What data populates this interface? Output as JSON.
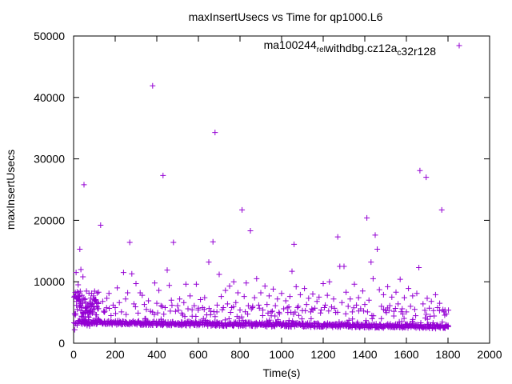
{
  "chart_data": {
    "type": "scatter",
    "title": "maxInsertUsecs vs Time for qp1000.L6",
    "xlabel": "Time(s)",
    "ylabel": "maxInsertUsecs",
    "xlim": [
      0,
      2000
    ],
    "ylim": [
      0,
      50000
    ],
    "xticks": [
      "0",
      "200",
      "400",
      "600",
      "800",
      "1000",
      "1200",
      "1400",
      "1600",
      "1800",
      "2000"
    ],
    "yticks": [
      "0",
      "10000",
      "20000",
      "30000",
      "40000",
      "50000"
    ],
    "grid": false,
    "legend_position": "top-right",
    "marker": "plus",
    "series": [
      {
        "name": "ma100244_rel_withdbg.cz12a_c32r128",
        "legend_parts": [
          {
            "text": "ma100244",
            "sub": false
          },
          {
            "text": "rel",
            "sub": true
          },
          {
            "text": "w",
            "sub": false
          },
          {
            "text": "ithdbg.cz12a",
            "sub": false
          },
          {
            "text": "c",
            "sub": true
          },
          {
            "text": "32r128",
            "sub": false
          }
        ],
        "color": "#9400d3",
        "highlight_points": [
          [
            5,
            2200
          ],
          [
            8,
            3200
          ],
          [
            10,
            4800
          ],
          [
            12,
            11500
          ],
          [
            15,
            6800
          ],
          [
            18,
            5500
          ],
          [
            20,
            7500
          ],
          [
            22,
            9500
          ],
          [
            25,
            8200
          ],
          [
            28,
            7000
          ],
          [
            30,
            15300
          ],
          [
            32,
            6200
          ],
          [
            35,
            12000
          ],
          [
            38,
            5800
          ],
          [
            40,
            7800
          ],
          [
            45,
            10800
          ],
          [
            50,
            25800
          ],
          [
            55,
            7200
          ],
          [
            60,
            6500
          ],
          [
            65,
            5300
          ],
          [
            70,
            6000
          ],
          [
            80,
            4700
          ],
          [
            90,
            4900
          ],
          [
            100,
            5600
          ],
          [
            110,
            4600
          ],
          [
            120,
            8300
          ],
          [
            130,
            19200
          ],
          [
            140,
            6800
          ],
          [
            150,
            5200
          ],
          [
            160,
            7300
          ],
          [
            170,
            8100
          ],
          [
            180,
            4500
          ],
          [
            190,
            6200
          ],
          [
            200,
            5800
          ],
          [
            210,
            9000
          ],
          [
            220,
            6600
          ],
          [
            230,
            5100
          ],
          [
            240,
            11500
          ],
          [
            250,
            7200
          ],
          [
            260,
            8200
          ],
          [
            270,
            16400
          ],
          [
            280,
            11300
          ],
          [
            290,
            6400
          ],
          [
            300,
            9700
          ],
          [
            310,
            4900
          ],
          [
            320,
            8200
          ],
          [
            330,
            7800
          ],
          [
            340,
            6300
          ],
          [
            350,
            5500
          ],
          [
            360,
            6900
          ],
          [
            370,
            5200
          ],
          [
            380,
            41900
          ],
          [
            390,
            9800
          ],
          [
            400,
            6500
          ],
          [
            410,
            8600
          ],
          [
            420,
            6100
          ],
          [
            430,
            27300
          ],
          [
            440,
            5800
          ],
          [
            450,
            11900
          ],
          [
            460,
            9400
          ],
          [
            470,
            7000
          ],
          [
            480,
            16400
          ],
          [
            490,
            5200
          ],
          [
            500,
            6100
          ],
          [
            510,
            7200
          ],
          [
            520,
            4900
          ],
          [
            530,
            6600
          ],
          [
            540,
            9600
          ],
          [
            550,
            5600
          ],
          [
            560,
            7700
          ],
          [
            570,
            4400
          ],
          [
            580,
            6100
          ],
          [
            590,
            9600
          ],
          [
            600,
            5700
          ],
          [
            610,
            7100
          ],
          [
            620,
            5800
          ],
          [
            630,
            7400
          ],
          [
            640,
            4600
          ],
          [
            650,
            13200
          ],
          [
            660,
            5200
          ],
          [
            670,
            16500
          ],
          [
            680,
            34300
          ],
          [
            690,
            6200
          ],
          [
            700,
            11200
          ],
          [
            710,
            7600
          ],
          [
            720,
            5800
          ],
          [
            730,
            8600
          ],
          [
            740,
            6400
          ],
          [
            750,
            9300
          ],
          [
            760,
            5800
          ],
          [
            770,
            10000
          ],
          [
            780,
            6600
          ],
          [
            790,
            8200
          ],
          [
            800,
            5400
          ],
          [
            810,
            21700
          ],
          [
            820,
            7600
          ],
          [
            830,
            9800
          ],
          [
            840,
            6100
          ],
          [
            850,
            18300
          ],
          [
            860,
            5800
          ],
          [
            870,
            7400
          ],
          [
            880,
            10500
          ],
          [
            890,
            6200
          ],
          [
            900,
            8200
          ],
          [
            910,
            5400
          ],
          [
            920,
            9300
          ],
          [
            930,
            6300
          ],
          [
            940,
            7700
          ],
          [
            950,
            5100
          ],
          [
            960,
            8800
          ],
          [
            970,
            6100
          ],
          [
            980,
            7200
          ],
          [
            990,
            4800
          ],
          [
            1000,
            8100
          ],
          [
            1010,
            5600
          ],
          [
            1020,
            6900
          ],
          [
            1030,
            5000
          ],
          [
            1040,
            7600
          ],
          [
            1050,
            11700
          ],
          [
            1060,
            16100
          ],
          [
            1070,
            9200
          ],
          [
            1080,
            6000
          ],
          [
            1090,
            7900
          ],
          [
            1100,
            5300
          ],
          [
            1110,
            8900
          ],
          [
            1120,
            6300
          ],
          [
            1130,
            7300
          ],
          [
            1140,
            5100
          ],
          [
            1150,
            8000
          ],
          [
            1160,
            5700
          ],
          [
            1170,
            6800
          ],
          [
            1180,
            7500
          ],
          [
            1190,
            5400
          ],
          [
            1200,
            9700
          ],
          [
            1210,
            6200
          ],
          [
            1220,
            7800
          ],
          [
            1230,
            10000
          ],
          [
            1240,
            5900
          ],
          [
            1250,
            7200
          ],
          [
            1260,
            5000
          ],
          [
            1270,
            17300
          ],
          [
            1280,
            12500
          ],
          [
            1290,
            6600
          ],
          [
            1300,
            12500
          ],
          [
            1310,
            8300
          ],
          [
            1320,
            6000
          ],
          [
            1330,
            7200
          ],
          [
            1340,
            5100
          ],
          [
            1350,
            9600
          ],
          [
            1360,
            6200
          ],
          [
            1370,
            7400
          ],
          [
            1380,
            5600
          ],
          [
            1390,
            8500
          ],
          [
            1400,
            6300
          ],
          [
            1410,
            20400
          ],
          [
            1420,
            7000
          ],
          [
            1430,
            13200
          ],
          [
            1440,
            10500
          ],
          [
            1450,
            17600
          ],
          [
            1460,
            15300
          ],
          [
            1470,
            8700
          ],
          [
            1480,
            6000
          ],
          [
            1490,
            7900
          ],
          [
            1500,
            5300
          ],
          [
            1510,
            9200
          ],
          [
            1520,
            6100
          ],
          [
            1530,
            7500
          ],
          [
            1540,
            5200
          ],
          [
            1550,
            8300
          ],
          [
            1560,
            6400
          ],
          [
            1570,
            10400
          ],
          [
            1580,
            5600
          ],
          [
            1590,
            7400
          ],
          [
            1600,
            5100
          ],
          [
            1610,
            8900
          ],
          [
            1620,
            6000
          ],
          [
            1630,
            7700
          ],
          [
            1640,
            5500
          ],
          [
            1650,
            8100
          ],
          [
            1660,
            12300
          ],
          [
            1665,
            28100
          ],
          [
            1680,
            6400
          ],
          [
            1695,
            27000
          ],
          [
            1700,
            7300
          ],
          [
            1710,
            5700
          ],
          [
            1720,
            6800
          ],
          [
            1730,
            5300
          ],
          [
            1740,
            7900
          ],
          [
            1750,
            5800
          ],
          [
            1760,
            6500
          ],
          [
            1770,
            21700
          ],
          [
            1780,
            5100
          ],
          [
            1790,
            3000
          ]
        ],
        "band": {
          "x_start": 20,
          "x_end": 1800,
          "x_step": 5,
          "base_start": 3400,
          "base_end": 2700,
          "spread": 700
        },
        "early_points": {
          "x_start": 2,
          "x_end": 120,
          "x_step": 3,
          "y_min": 2800,
          "y_max": 8500
        }
      }
    ]
  }
}
